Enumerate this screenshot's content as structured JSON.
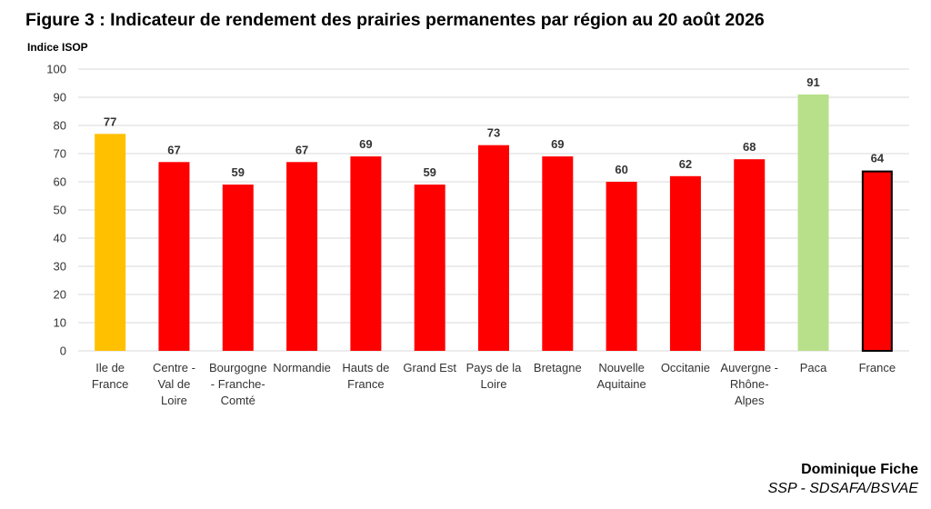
{
  "title": "Figure 3 : Indicateur de rendement des prairies permanentes par région au 20 août 2026",
  "credit": {
    "author": "Dominique Fiche",
    "org": "SSP - SDSAFA/BSVAE"
  },
  "chart_data": {
    "type": "bar",
    "title": "Figure 3 : Indicateur de rendement des prairies permanentes par région au 20 août 2026",
    "xlabel": "",
    "ylabel": "Indice ISOP",
    "ylim": [
      0,
      100
    ],
    "yticks": [
      0,
      10,
      20,
      30,
      40,
      50,
      60,
      70,
      80,
      90,
      100
    ],
    "grid": true,
    "legend": "none",
    "categories": [
      [
        "Ile de",
        "France"
      ],
      [
        "Centre -",
        "Val de",
        "Loire"
      ],
      [
        "Bourgogne",
        "- Franche-",
        "Comté"
      ],
      [
        "Normandie"
      ],
      [
        "Hauts de",
        "France"
      ],
      [
        "Grand Est"
      ],
      [
        "Pays de la",
        "Loire"
      ],
      [
        "Bretagne"
      ],
      [
        "Nouvelle",
        "Aquitaine"
      ],
      [
        "Occitanie"
      ],
      [
        "Auvergne -",
        "Rhône-",
        "Alpes"
      ],
      [
        "Paca"
      ],
      [
        "France"
      ]
    ],
    "values": [
      77,
      67,
      59,
      67,
      69,
      59,
      73,
      69,
      60,
      62,
      68,
      91,
      64
    ],
    "colors": [
      "#ffc000",
      "#ff0000",
      "#ff0000",
      "#ff0000",
      "#ff0000",
      "#ff0000",
      "#ff0000",
      "#ff0000",
      "#ff0000",
      "#ff0000",
      "#ff0000",
      "#b8e08a",
      "#ff0000"
    ],
    "outlined": [
      false,
      false,
      false,
      false,
      false,
      false,
      false,
      false,
      false,
      false,
      false,
      false,
      true
    ],
    "gridline_color": "#d9d9d9"
  }
}
